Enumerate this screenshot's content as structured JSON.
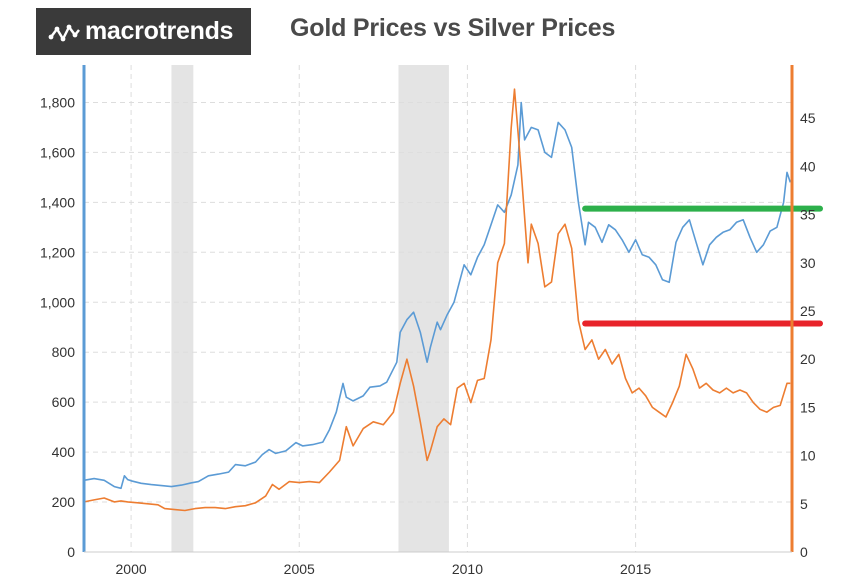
{
  "logo": {
    "text": "macrotrends"
  },
  "chart_data": {
    "type": "line",
    "title": "Gold Prices vs Silver Prices",
    "xlabel": "",
    "ylabel": "",
    "xlim": [
      1998.6,
      2019.65
    ],
    "ylim_left": [
      0,
      1950
    ],
    "ylim_right": [
      0,
      50.51
    ],
    "x_ticks": [
      "2000",
      "2005",
      "2010",
      "2015"
    ],
    "y_left_ticks": [
      "0",
      "200",
      "400",
      "600",
      "800",
      "1,000",
      "1,200",
      "1,400",
      "1,600",
      "1,800"
    ],
    "y_right_ticks": [
      "0",
      "5",
      "10",
      "15",
      "20",
      "25",
      "30",
      "35",
      "40",
      "45"
    ],
    "grid": true,
    "recessions": [
      [
        2001.2,
        2001.85
      ],
      [
        2007.95,
        2009.45
      ]
    ],
    "annotations": [
      {
        "name": "green-level-line",
        "axis": "left",
        "y": 1375,
        "x_start": 2013.5,
        "x_end": 2019.65,
        "color": "#2db04b"
      },
      {
        "name": "red-level-line",
        "axis": "right",
        "y": 23.7,
        "x_start": 2013.5,
        "x_end": 2019.65,
        "color": "#e8232a"
      }
    ],
    "colors": {
      "gold": "#5b9bd5",
      "silver": "#ed7d31",
      "recession": "#e4e4e4",
      "grid": "#dddddd"
    },
    "series": [
      {
        "axis": "left",
        "color": "#5b9bd5",
        "x": [
          1998.6,
          1998.9,
          1999.2,
          1999.5,
          1999.7,
          1999.8,
          1999.9,
          2000.0,
          2000.3,
          2000.6,
          2000.9,
          2001.2,
          2001.5,
          2001.8,
          2002.0,
          2002.3,
          2002.6,
          2002.9,
          2003.1,
          2003.4,
          2003.7,
          2003.9,
          2004.1,
          2004.3,
          2004.6,
          2004.9,
          2005.1,
          2005.4,
          2005.7,
          2005.9,
          2006.1,
          2006.3,
          2006.4,
          2006.6,
          2006.9,
          2007.1,
          2007.4,
          2007.6,
          2007.9,
          2008.0,
          2008.2,
          2008.4,
          2008.6,
          2008.8,
          2008.9,
          2009.1,
          2009.2,
          2009.4,
          2009.6,
          2009.8,
          2009.9,
          2010.1,
          2010.3,
          2010.5,
          2010.7,
          2010.9,
          2011.1,
          2011.3,
          2011.5,
          2011.6,
          2011.7,
          2011.9,
          2012.1,
          2012.3,
          2012.5,
          2012.7,
          2012.9,
          2013.1,
          2013.3,
          2013.5,
          2013.6,
          2013.8,
          2014.0,
          2014.2,
          2014.4,
          2014.6,
          2014.8,
          2015.0,
          2015.2,
          2015.4,
          2015.6,
          2015.8,
          2016.0,
          2016.2,
          2016.4,
          2016.6,
          2016.8,
          2017.0,
          2017.2,
          2017.4,
          2017.6,
          2017.8,
          2018.0,
          2018.2,
          2018.4,
          2018.6,
          2018.8,
          2019.0,
          2019.2,
          2019.4,
          2019.5,
          2019.6
        ],
        "values": [
          287,
          294,
          287,
          262,
          255,
          305,
          290,
          285,
          275,
          270,
          266,
          262,
          268,
          277,
          282,
          305,
          312,
          320,
          350,
          345,
          360,
          390,
          410,
          395,
          405,
          438,
          425,
          430,
          440,
          490,
          560,
          675,
          620,
          605,
          625,
          660,
          665,
          680,
          760,
          880,
          930,
          960,
          880,
          760,
          820,
          920,
          890,
          950,
          1000,
          1100,
          1150,
          1110,
          1180,
          1230,
          1310,
          1390,
          1360,
          1430,
          1550,
          1800,
          1650,
          1700,
          1690,
          1600,
          1580,
          1720,
          1690,
          1620,
          1400,
          1230,
          1320,
          1300,
          1240,
          1310,
          1290,
          1250,
          1200,
          1250,
          1190,
          1180,
          1150,
          1090,
          1080,
          1240,
          1300,
          1330,
          1240,
          1150,
          1230,
          1260,
          1280,
          1290,
          1320,
          1330,
          1260,
          1200,
          1230,
          1285,
          1300,
          1400,
          1520,
          1480
        ]
      },
      {
        "axis": "right",
        "color": "#ed7d31",
        "x": [
          1998.6,
          1998.9,
          1999.2,
          1999.5,
          1999.7,
          1999.9,
          2000.2,
          2000.5,
          2000.8,
          2001.0,
          2001.3,
          2001.6,
          2001.9,
          2002.2,
          2002.5,
          2002.8,
          2003.1,
          2003.4,
          2003.7,
          2004.0,
          2004.2,
          2004.4,
          2004.7,
          2005.0,
          2005.3,
          2005.6,
          2005.9,
          2006.2,
          2006.4,
          2006.6,
          2006.9,
          2007.2,
          2007.5,
          2007.8,
          2008.0,
          2008.2,
          2008.4,
          2008.6,
          2008.8,
          2008.9,
          2009.1,
          2009.3,
          2009.5,
          2009.7,
          2009.9,
          2010.1,
          2010.3,
          2010.5,
          2010.7,
          2010.9,
          2011.1,
          2011.3,
          2011.4,
          2011.6,
          2011.8,
          2011.9,
          2012.1,
          2012.3,
          2012.5,
          2012.7,
          2012.9,
          2013.1,
          2013.3,
          2013.5,
          2013.7,
          2013.9,
          2014.1,
          2014.3,
          2014.5,
          2014.7,
          2014.9,
          2015.1,
          2015.3,
          2015.5,
          2015.7,
          2015.9,
          2016.1,
          2016.3,
          2016.5,
          2016.7,
          2016.9,
          2017.1,
          2017.3,
          2017.5,
          2017.7,
          2017.9,
          2018.1,
          2018.3,
          2018.5,
          2018.7,
          2018.9,
          2019.1,
          2019.3,
          2019.5,
          2019.6
        ],
        "values": [
          5.2,
          5.4,
          5.6,
          5.2,
          5.3,
          5.2,
          5.1,
          5.0,
          4.9,
          4.5,
          4.4,
          4.3,
          4.5,
          4.6,
          4.6,
          4.5,
          4.7,
          4.8,
          5.1,
          5.8,
          7.0,
          6.5,
          7.3,
          7.2,
          7.3,
          7.2,
          8.3,
          9.5,
          13.0,
          11.0,
          12.8,
          13.5,
          13.2,
          14.5,
          17.5,
          20.0,
          17.2,
          13.5,
          9.5,
          10.5,
          13.0,
          13.8,
          13.2,
          17.0,
          17.5,
          15.5,
          17.8,
          18.0,
          22.0,
          30.0,
          32.0,
          44.0,
          48.0,
          39.5,
          30.0,
          34.0,
          32.0,
          27.5,
          28.0,
          33.0,
          34.0,
          31.5,
          24.0,
          21.0,
          22.0,
          20.0,
          21.0,
          19.5,
          20.5,
          18.0,
          16.5,
          17.0,
          16.2,
          15.0,
          14.5,
          14.0,
          15.5,
          17.2,
          20.5,
          19.0,
          17.0,
          17.5,
          16.8,
          16.5,
          17.0,
          16.5,
          16.8,
          16.5,
          15.5,
          14.8,
          14.5,
          15.0,
          15.2,
          17.5,
          17.5
        ]
      }
    ]
  }
}
